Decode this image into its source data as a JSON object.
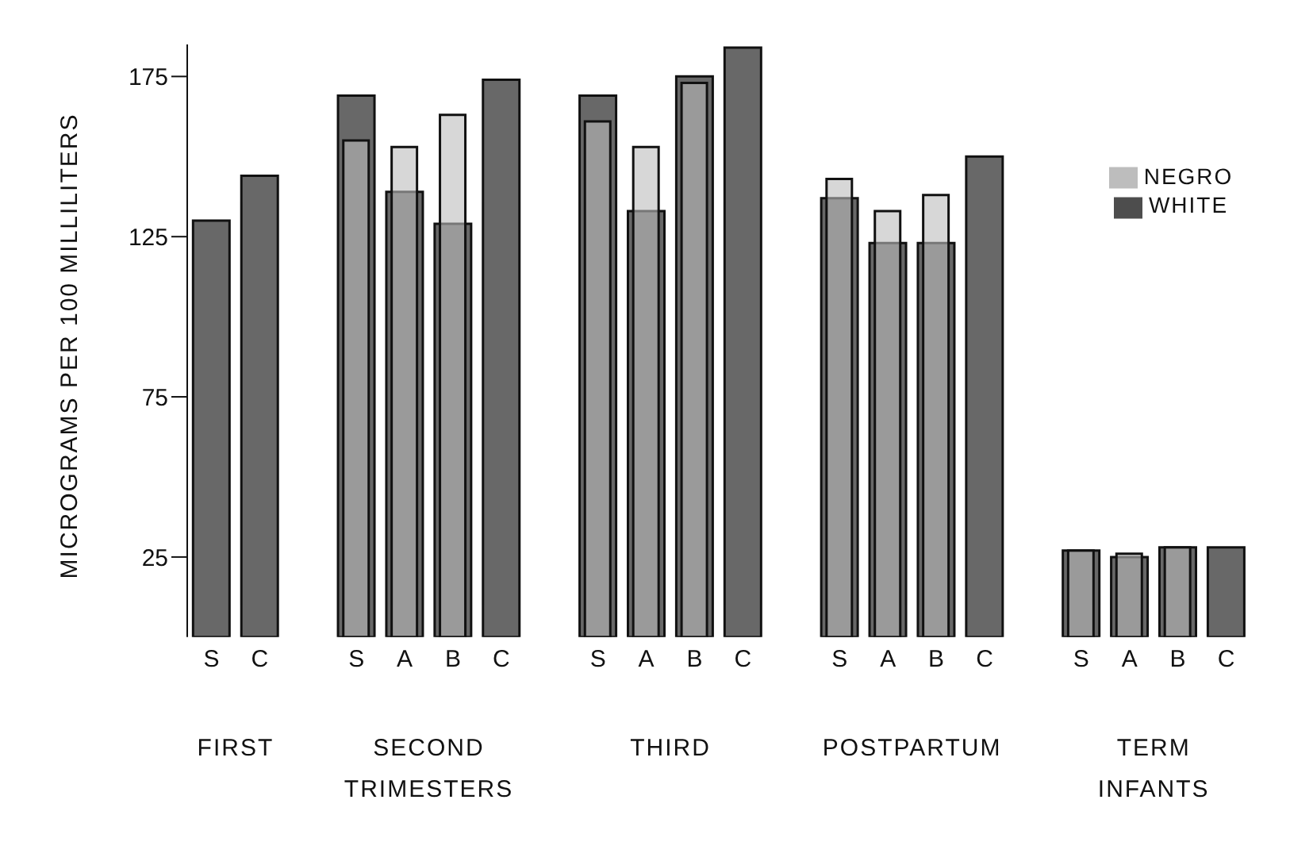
{
  "chart_data": {
    "type": "bar",
    "ylabel": "MICROGRAMS PER 100 MILLILITERS",
    "categories": [
      "S",
      "C",
      null,
      "S",
      "A",
      "B",
      "C",
      null,
      "S",
      "A",
      "B",
      "C",
      null,
      "S",
      "A",
      "B",
      "C",
      null,
      "S",
      "A",
      "B",
      "C"
    ],
    "series": [
      {
        "name": "WHITE",
        "color": "#4d4d4d",
        "values": [
          130,
          144,
          null,
          169,
          139,
          129,
          174,
          null,
          169,
          133,
          175,
          184,
          null,
          137,
          123,
          123,
          150,
          null,
          27,
          25,
          28,
          28
        ]
      },
      {
        "name": "NEGRO",
        "color": "#bdbdbd",
        "values": [
          null,
          null,
          null,
          155,
          153,
          163,
          null,
          null,
          161,
          153,
          173,
          null,
          null,
          143,
          133,
          138,
          null,
          null,
          27,
          26,
          28,
          null
        ]
      }
    ],
    "ylim": [
      0,
      185
    ],
    "yticks": [
      25,
      75,
      125,
      175
    ],
    "grid": false,
    "legend": "top right",
    "annotations": [
      "FIRST",
      "SECOND\nTRIMESTERS",
      "THIRD",
      "POSTPARTUM",
      "TERM\nINFANTS"
    ]
  }
}
